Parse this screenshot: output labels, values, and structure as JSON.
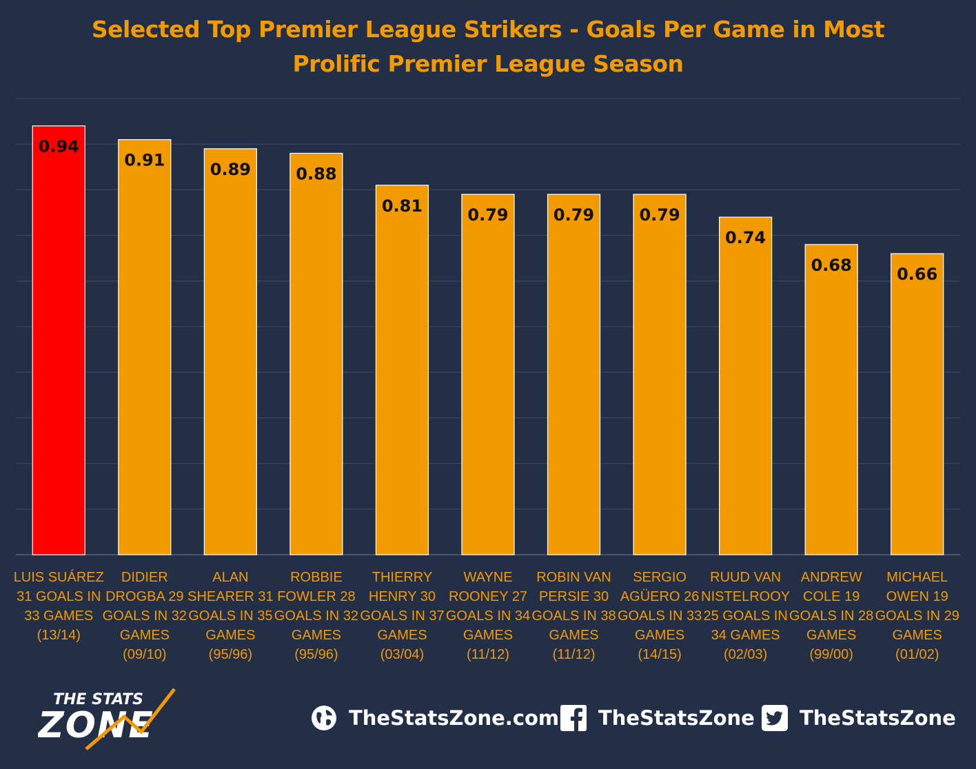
{
  "chart_data": {
    "type": "bar",
    "title": "Selected Top Premier League Strikers - Goals Per Game in Most Prolific Premier League Season",
    "title_lines": [
      "Selected Top Premier League Strikers - Goals Per Game in Most",
      "Prolific Premier League Season"
    ],
    "categories": [
      "LUIS SUÁREZ 31 GOALS IN 33 GAMES (13/14)",
      "DIDIER DROGBA 29 GOALS IN 32 GAMES (09/10)",
      "ALAN SHEARER 31 GOALS IN 35 GAMES (95/96)",
      "ROBBIE FOWLER 28 GOALS IN 32 GAMES (95/96)",
      "THIERRY HENRY 30 GOALS IN 37 GAMES (03/04)",
      "WAYNE ROONEY 27 GOALS IN 34 GAMES (11/12)",
      "ROBIN VAN PERSIE 30 GOALS IN 38 GAMES (11/12)",
      "SERGIO AGÜERO 26 GOALS IN 33 GAMES (14/15)",
      "RUUD VAN NISTELROOY 25 GOALS IN 34 GAMES (02/03)",
      "ANDREW COLE 19 GOALS IN 28 GAMES (99/00)",
      "MICHAEL OWEN 19 GOALS IN 29 GAMES (01/02)"
    ],
    "category_lines": [
      [
        "LUIS SUÁREZ",
        "31 GOALS IN",
        "33 GAMES",
        "(13/14)"
      ],
      [
        "DIDIER",
        "DROGBA 29",
        "GOALS IN 32",
        "GAMES",
        "(09/10)"
      ],
      [
        "ALAN",
        "SHEARER 31",
        "GOALS IN 35",
        "GAMES",
        "(95/96)"
      ],
      [
        "ROBBIE",
        "FOWLER 28",
        "GOALS IN 32",
        "GAMES",
        "(95/96)"
      ],
      [
        "THIERRY",
        "HENRY 30",
        "GOALS IN 37",
        "GAMES",
        "(03/04)"
      ],
      [
        "WAYNE",
        "ROONEY 27",
        "GOALS IN 34",
        "GAMES",
        "(11/12)"
      ],
      [
        "ROBIN VAN",
        "PERSIE 30",
        "GOALS IN 38",
        "GAMES",
        "(11/12)"
      ],
      [
        "SERGIO",
        "AGÜERO 26",
        "GOALS IN 33",
        "GAMES",
        "(14/15)"
      ],
      [
        "RUUD VAN",
        "NISTELROOY",
        "25 GOALS IN",
        "34 GAMES",
        "(02/03)"
      ],
      [
        "ANDREW",
        "COLE 19",
        "GOALS IN 28",
        "GAMES",
        "(99/00)"
      ],
      [
        "MICHAEL",
        "OWEN 19",
        "GOALS IN 29",
        "GAMES",
        "(01/02)"
      ]
    ],
    "values": [
      0.94,
      0.91,
      0.89,
      0.88,
      0.81,
      0.79,
      0.79,
      0.79,
      0.74,
      0.68,
      0.66
    ],
    "data_labels": [
      "0.94",
      "0.91",
      "0.89",
      "0.88",
      "0.81",
      "0.79",
      "0.79",
      "0.79",
      "0.74",
      "0.68",
      "0.66"
    ],
    "highlight_index": 0,
    "ylim": [
      0,
      1.0
    ],
    "gridline_step": 0.1,
    "ytick_labels_shown": false,
    "grid": true,
    "legend": "none",
    "xlabel": "",
    "ylabel": ""
  },
  "colors": {
    "background": "#232f47",
    "title": "#f39a00",
    "bar": "#f39a00",
    "bar_highlight": "#ff0000",
    "bar_label": "#111111",
    "category_label": "#f39a00",
    "gridline": "#3a4660",
    "footer_text": "#ffffff"
  },
  "footer": {
    "logo_text_top": "THE STATS",
    "logo_text_bottom": "ZONE",
    "website_icon": "globe-icon",
    "website": "TheStatsZone.com",
    "facebook_icon": "facebook-icon",
    "facebook": "TheStatsZone",
    "twitter_icon": "twitter-icon",
    "twitter": "TheStatsZone"
  }
}
